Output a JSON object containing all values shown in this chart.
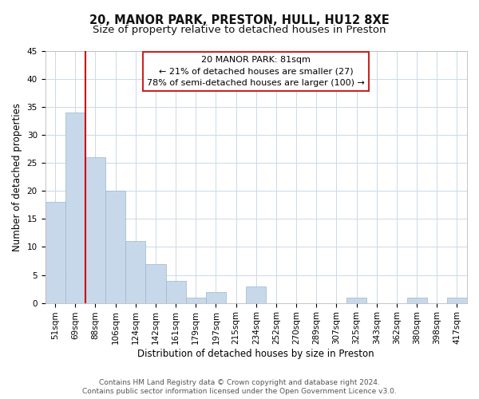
{
  "title": "20, MANOR PARK, PRESTON, HULL, HU12 8XE",
  "subtitle": "Size of property relative to detached houses in Preston",
  "xlabel": "Distribution of detached houses by size in Preston",
  "ylabel": "Number of detached properties",
  "bar_color": "#c8d8eb",
  "bar_edge_color": "#9ab5cc",
  "marker_line_color": "#cc0000",
  "categories": [
    "51sqm",
    "69sqm",
    "88sqm",
    "106sqm",
    "124sqm",
    "142sqm",
    "161sqm",
    "179sqm",
    "197sqm",
    "215sqm",
    "234sqm",
    "252sqm",
    "270sqm",
    "289sqm",
    "307sqm",
    "325sqm",
    "343sqm",
    "362sqm",
    "380sqm",
    "398sqm",
    "417sqm"
  ],
  "values": [
    18,
    34,
    26,
    20,
    11,
    7,
    4,
    1,
    2,
    0,
    3,
    0,
    0,
    0,
    0,
    1,
    0,
    0,
    1,
    0,
    1
  ],
  "ylim": [
    0,
    45
  ],
  "yticks": [
    0,
    5,
    10,
    15,
    20,
    25,
    30,
    35,
    40,
    45
  ],
  "marker_bar_index": 1,
  "annotation_line1": "20 MANOR PARK: 81sqm",
  "annotation_line2": "← 21% of detached houses are smaller (27)",
  "annotation_line3": "78% of semi-detached houses are larger (100) →",
  "footer_line1": "Contains HM Land Registry data © Crown copyright and database right 2024.",
  "footer_line2": "Contains public sector information licensed under the Open Government Licence v3.0.",
  "background_color": "#ffffff",
  "grid_color": "#ccd9e6",
  "title_fontsize": 10.5,
  "subtitle_fontsize": 9.5,
  "axis_label_fontsize": 8.5,
  "tick_fontsize": 7.5,
  "annotation_fontsize": 8,
  "footer_fontsize": 6.5
}
